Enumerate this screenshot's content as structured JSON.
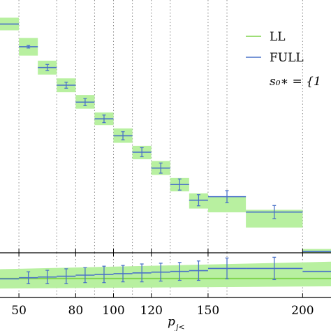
{
  "chart_data": {
    "type": "step",
    "xlabel": "p_{j<}",
    "xlabel_main": "p",
    "xlabel_sub": "j<",
    "xlim": [
      40,
      215
    ],
    "x_ticks": [
      50,
      80,
      100,
      120,
      150,
      200
    ],
    "x_tick_labels": [
      "50",
      "80",
      "100",
      "120",
      "150",
      "200"
    ],
    "dotted_gridlines_x": [
      70,
      90,
      110,
      130,
      160
    ],
    "main_panel": {
      "ylim": [
        0,
        100
      ],
      "bins": [
        {
          "x0": 40,
          "x1": 50,
          "full": 90.5,
          "err": 0,
          "ll_lo": 88,
          "ll_hi": 93
        },
        {
          "x0": 50,
          "x1": 60,
          "full": 81.5,
          "err": 0.5,
          "ll_lo": 78,
          "ll_hi": 85
        },
        {
          "x0": 60,
          "x1": 70,
          "full": 73.3,
          "err": 1.2,
          "ll_lo": 70.5,
          "ll_hi": 76
        },
        {
          "x0": 70,
          "x1": 80,
          "full": 66.3,
          "err": 1.2,
          "ll_lo": 63.5,
          "ll_hi": 69
        },
        {
          "x0": 80,
          "x1": 90,
          "full": 59.6,
          "err": 1.4,
          "ll_lo": 57,
          "ll_hi": 62.4
        },
        {
          "x0": 90,
          "x1": 100,
          "full": 53,
          "err": 1.5,
          "ll_lo": 50.5,
          "ll_hi": 55.5
        },
        {
          "x0": 100,
          "x1": 110,
          "full": 46.3,
          "err": 1.6,
          "ll_lo": 43.5,
          "ll_hi": 49.2
        },
        {
          "x0": 110,
          "x1": 120,
          "full": 39.8,
          "err": 1.8,
          "ll_lo": 37,
          "ll_hi": 42.3
        },
        {
          "x0": 120,
          "x1": 130,
          "full": 33.5,
          "err": 2.0,
          "ll_lo": 30.8,
          "ll_hi": 36.3
        },
        {
          "x0": 130,
          "x1": 140,
          "full": 27,
          "err": 2.2,
          "ll_lo": 24.3,
          "ll_hi": 29.6
        },
        {
          "x0": 140,
          "x1": 150,
          "full": 20.8,
          "err": 2.2,
          "ll_lo": 17.5,
          "ll_hi": 23.5
        },
        {
          "x0": 150,
          "x1": 170,
          "full": 22.2,
          "err": 2.4,
          "ll_lo": 16,
          "ll_hi": 22.2
        },
        {
          "x0": 170,
          "x1": 200,
          "full": 16.1,
          "err": 2.6,
          "ll_lo": 10,
          "ll_hi": 17
        },
        {
          "x0": 200,
          "x1": 215,
          "full": 0.5,
          "err": 0,
          "ll_lo": -5,
          "ll_hi": 1.5
        }
      ]
    },
    "ratio_panel": {
      "ylim": [
        0.7,
        1.3
      ],
      "ll_line": 0.955,
      "band": [
        {
          "x": 40,
          "lo": 0.82,
          "hi": 1.08
        },
        {
          "x": 215,
          "lo": 0.85,
          "hi": 1.18
        }
      ],
      "bins": [
        {
          "x0": 40,
          "x1": 50,
          "full": 0.95,
          "err": 0.0
        },
        {
          "x0": 50,
          "x1": 60,
          "full": 0.965,
          "err": 0.08
        },
        {
          "x0": 60,
          "x1": 70,
          "full": 0.975,
          "err": 0.09
        },
        {
          "x0": 70,
          "x1": 80,
          "full": 0.985,
          "err": 0.1
        },
        {
          "x0": 80,
          "x1": 90,
          "full": 1.0,
          "err": 0.1
        },
        {
          "x0": 90,
          "x1": 100,
          "full": 1.01,
          "err": 0.11
        },
        {
          "x0": 100,
          "x1": 110,
          "full": 1.02,
          "err": 0.11
        },
        {
          "x0": 110,
          "x1": 120,
          "full": 1.03,
          "err": 0.12
        },
        {
          "x0": 120,
          "x1": 130,
          "full": 1.04,
          "err": 0.12
        },
        {
          "x0": 130,
          "x1": 140,
          "full": 1.05,
          "err": 0.12
        },
        {
          "x0": 140,
          "x1": 150,
          "full": 1.06,
          "err": 0.13
        },
        {
          "x0": 150,
          "x1": 170,
          "full": 1.09,
          "err": 0.14
        },
        {
          "x0": 170,
          "x1": 200,
          "full": 1.09,
          "err": 0.15
        },
        {
          "x0": 200,
          "x1": 215,
          "full": 1.05,
          "err": 0.0
        }
      ]
    },
    "legend": {
      "position": "top-right",
      "entries": [
        {
          "label": "LL",
          "color": "#7fd44a"
        },
        {
          "label": "FULL",
          "color": "#4a72c8"
        },
        {
          "label": "s₀∗ = {1",
          "color": "none"
        }
      ]
    },
    "colors": {
      "ll_band": "#b8f0a0",
      "ll_line": "#7fd44a",
      "full": "#4a72c8",
      "grid": "#888888"
    }
  }
}
